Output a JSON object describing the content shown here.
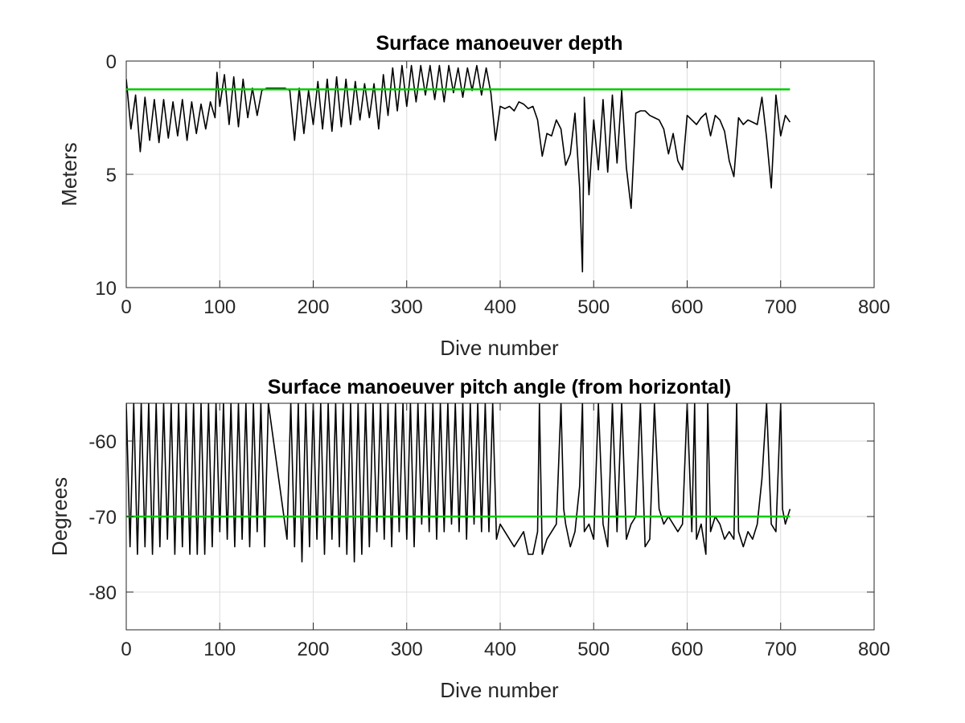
{
  "chart_data": [
    {
      "type": "line",
      "title": "Surface manoeuver depth",
      "xlabel": "Dive number",
      "ylabel": "Meters",
      "xlim": [
        0,
        800
      ],
      "ylim": [
        0,
        10
      ],
      "y_reversed": true,
      "grid": true,
      "xticks": [
        "0",
        "100",
        "200",
        "300",
        "400",
        "500",
        "600",
        "700",
        "800"
      ],
      "yticks": [
        "0",
        "5",
        "10"
      ],
      "reference_line": {
        "value": 1.25,
        "color": "#00cc00"
      },
      "series": [
        {
          "color": "#000000",
          "x": [
            0,
            5,
            10,
            15,
            20,
            25,
            30,
            35,
            40,
            45,
            50,
            55,
            60,
            65,
            70,
            75,
            80,
            85,
            90,
            95,
            97,
            100,
            105,
            110,
            115,
            120,
            125,
            130,
            135,
            140,
            145,
            150,
            155,
            160,
            165,
            170,
            175,
            180,
            185,
            190,
            195,
            200,
            205,
            210,
            215,
            220,
            225,
            230,
            235,
            240,
            245,
            250,
            255,
            260,
            265,
            270,
            275,
            280,
            285,
            290,
            295,
            300,
            305,
            310,
            315,
            320,
            325,
            330,
            335,
            340,
            345,
            350,
            355,
            360,
            365,
            370,
            375,
            380,
            385,
            390,
            395,
            400,
            405,
            410,
            415,
            420,
            425,
            430,
            435,
            440,
            445,
            450,
            455,
            460,
            465,
            470,
            475,
            480,
            485,
            488,
            490,
            495,
            500,
            505,
            510,
            515,
            520,
            525,
            530,
            535,
            540,
            545,
            550,
            555,
            560,
            565,
            570,
            575,
            580,
            585,
            590,
            595,
            600,
            605,
            610,
            615,
            620,
            625,
            630,
            635,
            640,
            645,
            650,
            655,
            660,
            665,
            670,
            675,
            680,
            685,
            690,
            695,
            700,
            705,
            710
          ],
          "values": [
            0.8,
            3.0,
            1.5,
            4.0,
            1.6,
            3.5,
            1.7,
            3.6,
            1.7,
            3.4,
            1.8,
            3.3,
            1.7,
            3.5,
            1.8,
            3.2,
            1.9,
            3.0,
            1.8,
            2.5,
            0.5,
            2.0,
            0.6,
            2.8,
            0.7,
            2.9,
            0.8,
            2.5,
            1.2,
            2.4,
            1.3,
            1.2,
            1.2,
            1.2,
            1.2,
            1.2,
            1.3,
            3.5,
            1.2,
            3.2,
            1.3,
            2.8,
            0.9,
            3.0,
            0.8,
            3.1,
            0.7,
            2.9,
            0.8,
            2.8,
            0.9,
            2.6,
            1.0,
            2.5,
            1.0,
            3.0,
            0.6,
            2.4,
            0.3,
            2.2,
            0.2,
            2.0,
            0.2,
            1.8,
            0.2,
            1.5,
            0.2,
            1.7,
            0.2,
            1.8,
            0.2,
            1.4,
            0.3,
            1.6,
            0.3,
            1.3,
            0.2,
            1.5,
            0.3,
            1.4,
            3.5,
            2.0,
            2.1,
            2.0,
            2.2,
            1.8,
            1.9,
            2.1,
            2.0,
            2.6,
            4.2,
            3.2,
            3.3,
            2.6,
            3.0,
            4.6,
            4.1,
            2.3,
            5.6,
            9.3,
            1.6,
            5.9,
            2.6,
            4.8,
            1.7,
            4.9,
            1.5,
            4.5,
            1.3,
            4.7,
            6.5,
            2.3,
            2.2,
            2.2,
            2.4,
            2.5,
            2.6,
            3.0,
            4.1,
            3.2,
            4.4,
            4.8,
            2.4,
            2.6,
            2.8,
            2.5,
            2.3,
            3.3,
            2.4,
            2.6,
            3.1,
            4.4,
            5.1,
            2.5,
            2.8,
            2.6,
            2.7,
            2.8,
            1.6,
            3.4,
            5.6,
            1.5,
            3.3,
            2.4,
            2.7
          ]
        }
      ]
    },
    {
      "type": "line",
      "title": "Surface manoeuver pitch angle (from horizontal)",
      "xlabel": "Dive number",
      "ylabel": "Degrees",
      "xlim": [
        0,
        800
      ],
      "ylim": [
        -85,
        -55
      ],
      "grid": true,
      "xticks": [
        "0",
        "100",
        "200",
        "300",
        "400",
        "500",
        "600",
        "700",
        "800"
      ],
      "yticks": [
        "-60",
        "-70",
        "-80"
      ],
      "reference_line": {
        "value": -70,
        "color": "#00cc00"
      },
      "series": [
        {
          "color": "#000000",
          "x": [
            0,
            4,
            8,
            12,
            16,
            20,
            24,
            28,
            32,
            36,
            40,
            44,
            48,
            52,
            56,
            60,
            64,
            68,
            72,
            76,
            80,
            84,
            88,
            92,
            96,
            100,
            104,
            108,
            112,
            116,
            120,
            124,
            128,
            132,
            136,
            140,
            144,
            148,
            152,
            172,
            176,
            180,
            184,
            188,
            192,
            196,
            200,
            204,
            208,
            212,
            216,
            220,
            224,
            228,
            232,
            236,
            240,
            244,
            248,
            252,
            256,
            260,
            264,
            268,
            272,
            276,
            280,
            284,
            288,
            292,
            296,
            300,
            304,
            308,
            312,
            316,
            320,
            324,
            328,
            332,
            336,
            340,
            344,
            348,
            352,
            356,
            360,
            364,
            368,
            372,
            376,
            380,
            384,
            388,
            392,
            396,
            400,
            405,
            410,
            415,
            420,
            425,
            430,
            435,
            440,
            442,
            445,
            450,
            460,
            465,
            468,
            470,
            475,
            480,
            485,
            488,
            490,
            495,
            500,
            505,
            510,
            515,
            520,
            525,
            530,
            535,
            540,
            545,
            550,
            555,
            560,
            565,
            570,
            575,
            580,
            590,
            595,
            600,
            605,
            608,
            610,
            615,
            620,
            622,
            625,
            630,
            635,
            640,
            645,
            650,
            653,
            655,
            660,
            665,
            670,
            675,
            680,
            685,
            690,
            695,
            700,
            702,
            705,
            710
          ],
          "values": [
            -55,
            -74,
            -55,
            -75,
            -55,
            -74,
            -55,
            -75,
            -55,
            -74,
            -55,
            -73,
            -55,
            -75,
            -55,
            -74,
            -55,
            -75,
            -55,
            -75,
            -55,
            -75,
            -55,
            -74,
            -55,
            -72,
            -55,
            -73,
            -55,
            -74,
            -55,
            -73,
            -55,
            -74,
            -55,
            -72,
            -55,
            -74,
            -55,
            -73,
            -55,
            -74,
            -55,
            -76,
            -55,
            -74,
            -55,
            -73,
            -55,
            -75,
            -55,
            -73,
            -55,
            -74,
            -55,
            -75,
            -55,
            -76,
            -55,
            -75,
            -55,
            -74,
            -55,
            -72,
            -55,
            -73,
            -55,
            -74,
            -55,
            -72,
            -55,
            -73,
            -55,
            -74,
            -55,
            -71,
            -55,
            -72,
            -55,
            -73,
            -55,
            -72,
            -55,
            -71,
            -55,
            -72,
            -55,
            -73,
            -55,
            -71,
            -55,
            -72,
            -55,
            -72,
            -55,
            -73,
            -71,
            -72,
            -73,
            -74,
            -73,
            -72,
            -75,
            -75,
            -72,
            -55,
            -75,
            -73,
            -71,
            -55,
            -69,
            -71,
            -74,
            -72,
            -66,
            -55,
            -72,
            -71,
            -73,
            -55,
            -71,
            -74,
            -55,
            -72,
            -55,
            -73,
            -71,
            -70,
            -55,
            -74,
            -73,
            -55,
            -69,
            -71,
            -70,
            -72,
            -71,
            -55,
            -72,
            -55,
            -73,
            -71,
            -75,
            -55,
            -72,
            -70,
            -71,
            -73,
            -72,
            -73,
            -55,
            -72,
            -74,
            -72,
            -73,
            -71,
            -65,
            -55,
            -71,
            -72,
            -55,
            -69,
            -71,
            -69
          ]
        }
      ]
    }
  ]
}
